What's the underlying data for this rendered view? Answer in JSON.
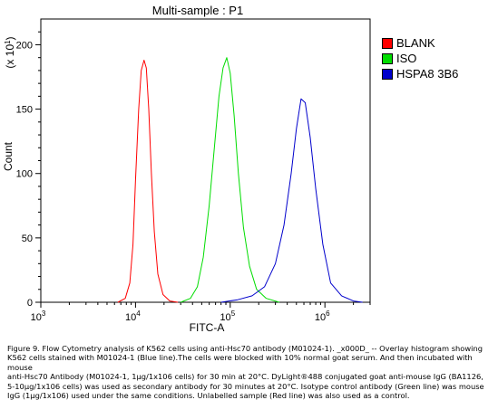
{
  "chart_data": {
    "type": "line",
    "title": "Multi-sample : P1",
    "xlabel": "FITC-A",
    "ylabel": "Count",
    "y_multiplier": "(x 10",
    "y_multiplier_exp": "1",
    "y_multiplier_close": ")",
    "x_scale": "log",
    "xlim": [
      1000,
      3000000
    ],
    "ylim": [
      0,
      220
    ],
    "x_ticks": [
      {
        "base": "10",
        "exp": "3",
        "value": 1000
      },
      {
        "base": "10",
        "exp": "4",
        "value": 10000
      },
      {
        "base": "10",
        "exp": "5",
        "value": 100000
      },
      {
        "base": "10",
        "exp": "6",
        "value": 1000000
      }
    ],
    "y_ticks": [
      "0",
      "50",
      "100",
      "150",
      "200"
    ],
    "grid": false,
    "legend_position": "right",
    "series": [
      {
        "name": "BLANK",
        "color": "#ff0000",
        "x": [
          6500,
          7800,
          8700,
          9400,
          10000,
          10800,
          11500,
          12300,
          13000,
          13800,
          14700,
          15800,
          17200,
          19500,
          23000,
          28000
        ],
        "y": [
          0,
          3,
          15,
          45,
          95,
          150,
          180,
          188,
          182,
          150,
          100,
          55,
          22,
          6,
          1,
          0
        ]
      },
      {
        "name": "ISO",
        "color": "#00dd00",
        "x": [
          30000,
          38000,
          45000,
          52000,
          60000,
          68000,
          76000,
          84000,
          92000,
          100000,
          110000,
          122000,
          138000,
          160000,
          190000,
          240000,
          330000
        ],
        "y": [
          0,
          3,
          12,
          35,
          75,
          120,
          160,
          182,
          190,
          178,
          145,
          100,
          58,
          28,
          10,
          3,
          0
        ]
      },
      {
        "name": "HSPA8 3B6",
        "color": "#0000cc",
        "x": [
          80000,
          120000,
          170000,
          230000,
          300000,
          370000,
          440000,
          500000,
          560000,
          620000,
          700000,
          800000,
          950000,
          1150000,
          1500000,
          2000000,
          2500000
        ],
        "y": [
          0,
          2,
          5,
          12,
          30,
          60,
          100,
          135,
          158,
          155,
          128,
          88,
          45,
          15,
          5,
          1,
          0
        ]
      }
    ]
  },
  "caption": {
    "line1": "Figure 9. Flow Cytometry analysis of K562 cells using anti-Hsc70 antibody (M01024-1). _x000D_ -- Overlay histogram showing",
    "line2": "K562 cells stained with M01024-1 (Blue line).The cells were blocked with 10% normal goat serum. And then incubated with mouse",
    "line3": "anti-Hsc70 Antibody (M01024-1, 1µg/1x106 cells) for 30 min at 20°C. DyLight®488 conjugated goat anti-mouse IgG (BA1126,",
    "line4": "5-10µg/1x106 cells) was used as secondary antibody for 30 minutes at 20°C. Isotype control antibody (Green line) was mouse",
    "line5": "IgG (1µg/1x106) used under the same conditions. Unlabelled sample (Red line) was also used as a control."
  }
}
